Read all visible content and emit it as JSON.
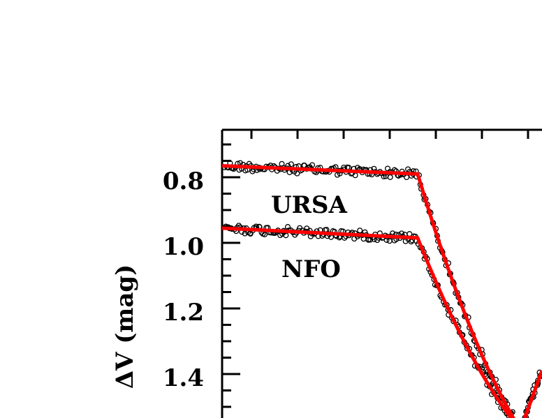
{
  "chart_data": {
    "type": "scatter",
    "title": "",
    "xlabel": "",
    "ylabel": "ΔV (mag)",
    "ylim": [
      0.7,
      1.52
    ],
    "y_inverted": true,
    "yticks": [
      "0.8",
      "1.0",
      "1.2",
      "1.4"
    ],
    "grid": false,
    "fit_color": "#ff0000",
    "point_color": "#000000",
    "series": [
      {
        "name": "URSA",
        "fit": {
          "baseline_start": 0.765,
          "baseline_end": 0.79,
          "minimum_end": 1.53
        },
        "points": "open circles"
      },
      {
        "name": "NFO",
        "fit": {
          "baseline_start": 0.955,
          "baseline_end": 0.985,
          "minimum_end": 1.53
        },
        "points": "open circles"
      }
    ]
  }
}
